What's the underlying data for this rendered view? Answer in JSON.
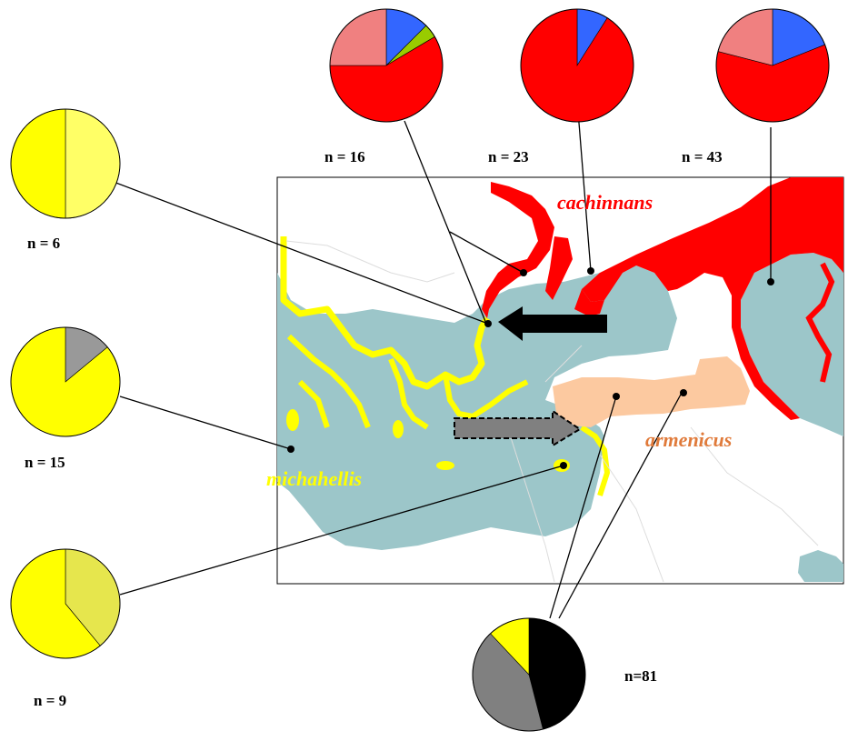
{
  "colors": {
    "sea": "#9cc6c9",
    "red": "#ff0000",
    "pink": "#f08080",
    "blue": "#3366ff",
    "green": "#99cc00",
    "yellow": "#ffff00",
    "yellow_pale": "#ffff66",
    "yellow_olive": "#e6e64d",
    "grey": "#999999",
    "grey_dark": "#808080",
    "black": "#000000",
    "peach": "#fcc9a0"
  },
  "species": {
    "cachinnans": {
      "label": "cachinnans",
      "color": "#ff0000"
    },
    "armenicus": {
      "label": "armenicus",
      "color": "#e07a3a"
    },
    "michahellis": {
      "label": "michahellis",
      "color": "#ffff00"
    }
  },
  "pies": [
    {
      "id": "pie-n16",
      "n_label": "n = 16",
      "n": 16,
      "slices": [
        {
          "value": 0.125,
          "color": "#3366ff"
        },
        {
          "value": 0.04,
          "color": "#99cc00"
        },
        {
          "value": 0.585,
          "color": "#ff0000"
        },
        {
          "value": 0.25,
          "color": "#f08080"
        }
      ]
    },
    {
      "id": "pie-n23",
      "n_label": "n = 23",
      "n": 23,
      "slices": [
        {
          "value": 0.09,
          "color": "#3366ff"
        },
        {
          "value": 0.91,
          "color": "#ff0000"
        }
      ]
    },
    {
      "id": "pie-n43",
      "n_label": "n = 43",
      "n": 43,
      "slices": [
        {
          "value": 0.19,
          "color": "#3366ff"
        },
        {
          "value": 0.6,
          "color": "#ff0000"
        },
        {
          "value": 0.21,
          "color": "#f08080"
        }
      ]
    },
    {
      "id": "pie-n6",
      "n_label": "n = 6",
      "n": 6,
      "slices": [
        {
          "value": 0.5,
          "color": "#ffff66"
        },
        {
          "value": 0.5,
          "color": "#ffff00"
        }
      ]
    },
    {
      "id": "pie-n15",
      "n_label": "n = 15",
      "n": 15,
      "slices": [
        {
          "value": 0.14,
          "color": "#999999"
        },
        {
          "value": 0.86,
          "color": "#ffff00"
        }
      ]
    },
    {
      "id": "pie-n9",
      "n_label": "n = 9",
      "n": 9,
      "slices": [
        {
          "value": 0.39,
          "color": "#e6e64d"
        },
        {
          "value": 0.61,
          "color": "#ffff00"
        }
      ]
    },
    {
      "id": "pie-n81",
      "n_label": "n=81",
      "n": 81,
      "slices": [
        {
          "value": 0.46,
          "color": "#000000"
        },
        {
          "value": 0.42,
          "color": "#808080"
        },
        {
          "value": 0.12,
          "color": "#ffff00"
        }
      ]
    }
  ]
}
